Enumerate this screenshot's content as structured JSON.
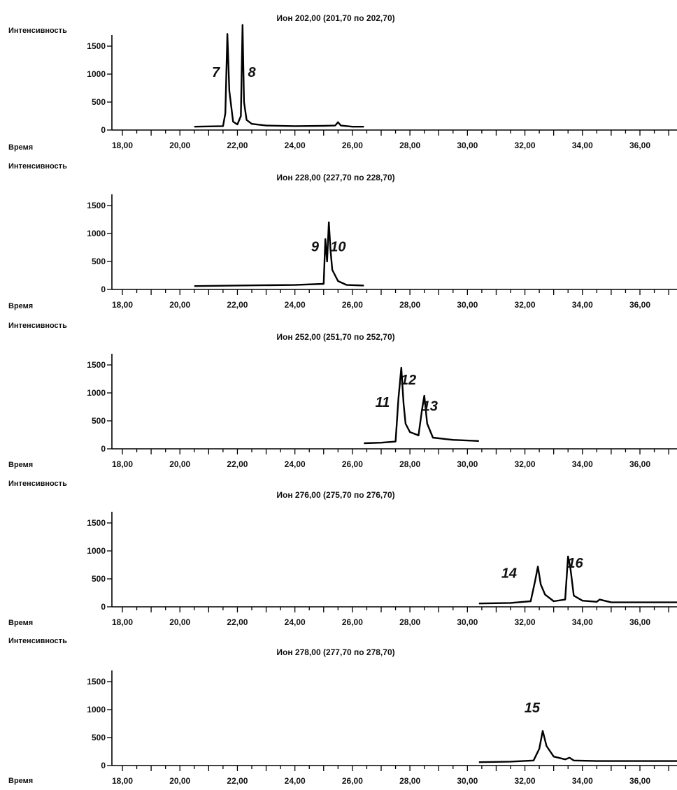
{
  "chart_data": [
    {
      "type": "line",
      "title": "Ион 202,00 (201,70 по 202,70)",
      "ylabel": "Интенсивность",
      "xlabel": "Время",
      "yticks": [
        0,
        500,
        1000,
        1500
      ],
      "ytick_labels": [
        "0",
        "500",
        "1000",
        "1500"
      ],
      "xticks": [
        18,
        20,
        22,
        24,
        26,
        28,
        30,
        32,
        34,
        36
      ],
      "xtick_labels": [
        "18,00",
        "20,00",
        "22,00",
        "24,00",
        "26,00",
        "28,00",
        "30,00",
        "32,00",
        "34,00",
        "36,00"
      ],
      "xlim": [
        16.5,
        37.6
      ],
      "ylim": [
        0,
        1650
      ],
      "series": [
        {
          "x": [
            20.5,
            21.5,
            21.58,
            21.65,
            21.72,
            21.85,
            22.0,
            22.12,
            22.18,
            22.23,
            22.32,
            22.5,
            23.0,
            24.0,
            25.0,
            25.4,
            25.5,
            25.6,
            26.0,
            26.4
          ],
          "y": [
            60,
            70,
            300,
            1720,
            700,
            150,
            100,
            250,
            1880,
            500,
            180,
            110,
            80,
            70,
            75,
            80,
            140,
            80,
            60,
            60
          ]
        }
      ],
      "annotations": [
        {
          "text": "7",
          "x": 21.25,
          "y": 950
        },
        {
          "text": "8",
          "x": 22.5,
          "y": 950
        }
      ]
    },
    {
      "type": "line",
      "title": "Ион 228,00 (227,70 по 228,70)",
      "ylabel": "Интенсивность",
      "xlabel": "Время",
      "yticks": [
        0,
        500,
        1000,
        1500
      ],
      "ytick_labels": [
        "0",
        "500",
        "1000",
        "1500"
      ],
      "xticks": [
        18,
        20,
        22,
        24,
        26,
        28,
        30,
        32,
        34,
        36
      ],
      "xtick_labels": [
        "18,00",
        "20,00",
        "22,00",
        "24,00",
        "26,00",
        "28,00",
        "30,00",
        "32,00",
        "34,00",
        "36,00"
      ],
      "xlim": [
        16.5,
        37.6
      ],
      "ylim": [
        0,
        1650
      ],
      "series": [
        {
          "x": [
            20.5,
            22.0,
            24.0,
            25.0,
            25.06,
            25.12,
            25.18,
            25.24,
            25.3,
            25.5,
            25.8,
            26.4
          ],
          "y": [
            60,
            70,
            80,
            100,
            900,
            500,
            1200,
            700,
            350,
            150,
            80,
            70
          ]
        }
      ],
      "annotations": [
        {
          "text": "9",
          "x": 24.7,
          "y": 680
        },
        {
          "text": "10",
          "x": 25.5,
          "y": 680
        }
      ]
    },
    {
      "type": "line",
      "title": "Ион 252,00 (251,70 по 252,70)",
      "ylabel": "Интенсивность",
      "xlabel": "Время",
      "yticks": [
        0,
        500,
        1000,
        1500
      ],
      "ytick_labels": [
        "0",
        "500",
        "1000",
        "1500"
      ],
      "xticks": [
        18,
        20,
        22,
        24,
        26,
        28,
        30,
        32,
        34,
        36
      ],
      "xtick_labels": [
        "18,00",
        "20,00",
        "22,00",
        "24,00",
        "26,00",
        "28,00",
        "30,00",
        "32,00",
        "34,00",
        "36,00"
      ],
      "xlim": [
        16.5,
        37.6
      ],
      "ylim": [
        0,
        1650
      ],
      "series": [
        {
          "x": [
            26.4,
            27.0,
            27.5,
            27.6,
            27.7,
            27.78,
            27.85,
            28.0,
            28.3,
            28.42,
            28.5,
            28.6,
            28.8,
            29.5,
            30.4
          ],
          "y": [
            100,
            110,
            130,
            900,
            1450,
            800,
            450,
            300,
            240,
            700,
            950,
            450,
            200,
            160,
            140
          ]
        }
      ],
      "annotations": [
        {
          "text": "11",
          "x": 27.05,
          "y": 750
        },
        {
          "text": "12",
          "x": 27.95,
          "y": 1150
        },
        {
          "text": "13",
          "x": 28.7,
          "y": 680
        }
      ]
    },
    {
      "type": "line",
      "title": "Ион 276,00 (275,70 по 276,70)",
      "ylabel": "Интенсивность",
      "xlabel": "Время",
      "yticks": [
        0,
        500,
        1000,
        1500
      ],
      "ytick_labels": [
        "0",
        "500",
        "1000",
        "1500"
      ],
      "xticks": [
        18,
        20,
        22,
        24,
        26,
        28,
        30,
        32,
        34,
        36
      ],
      "xtick_labels": [
        "18,00",
        "20,00",
        "22,00",
        "24,00",
        "26,00",
        "28,00",
        "30,00",
        "32,00",
        "34,00",
        "36,00"
      ],
      "xlim": [
        16.5,
        37.6
      ],
      "ylim": [
        0,
        1650
      ],
      "series": [
        {
          "x": [
            30.4,
            31.5,
            32.2,
            32.35,
            32.45,
            32.55,
            32.7,
            33.0,
            33.4,
            33.5,
            33.58,
            33.7,
            34.0,
            34.5,
            34.6,
            35.0,
            37.6
          ],
          "y": [
            60,
            70,
            100,
            450,
            720,
            400,
            220,
            100,
            130,
            900,
            700,
            200,
            110,
            90,
            130,
            80,
            80
          ]
        }
      ],
      "annotations": [
        {
          "text": "14",
          "x": 31.45,
          "y": 520
        },
        {
          "text": "16",
          "x": 33.75,
          "y": 700
        }
      ]
    },
    {
      "type": "line",
      "title": "Ион 278,00 (277,70 по 278,70)",
      "ylabel": "Интенсивность",
      "xlabel": "Время",
      "yticks": [
        0,
        500,
        1000,
        1500
      ],
      "ytick_labels": [
        "0",
        "500",
        "1000",
        "1500"
      ],
      "xticks": [
        18,
        20,
        22,
        24,
        26,
        28,
        30,
        32,
        34,
        36
      ],
      "xtick_labels": [
        "18,00",
        "20,00",
        "22,00",
        "24,00",
        "26,00",
        "28,00",
        "30,00",
        "32,00",
        "34,00",
        "36,00"
      ],
      "xlim": [
        16.5,
        37.6
      ],
      "ylim": [
        0,
        1650
      ],
      "series": [
        {
          "x": [
            30.4,
            31.5,
            32.3,
            32.5,
            32.62,
            32.75,
            33.0,
            33.4,
            33.55,
            33.7,
            34.5,
            37.6
          ],
          "y": [
            60,
            70,
            90,
            300,
            620,
            350,
            160,
            110,
            140,
            90,
            80,
            80
          ]
        }
      ],
      "annotations": [
        {
          "text": "15",
          "x": 32.25,
          "y": 950
        }
      ]
    }
  ]
}
